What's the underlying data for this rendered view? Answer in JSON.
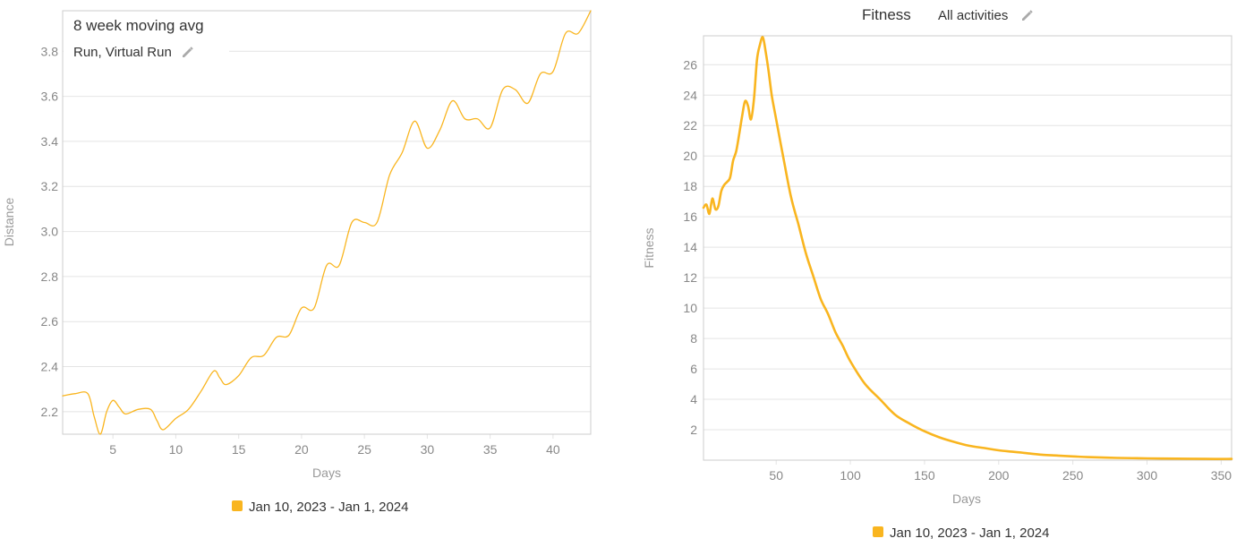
{
  "chart_data": [
    {
      "type": "line",
      "title": "8 week moving avg",
      "subtitle": "Run, Virtual Run",
      "subtitle_icon": "pencil-icon",
      "xlabel": "Days",
      "ylabel": "Distance",
      "xlim": [
        1,
        43
      ],
      "ylim": [
        2.1,
        3.98
      ],
      "xticks": [
        5,
        10,
        15,
        20,
        25,
        30,
        35,
        40
      ],
      "yticks": [
        2.2,
        2.4,
        2.6,
        2.8,
        3.0,
        3.2,
        3.4,
        3.6,
        3.8
      ],
      "ytick_labels": [
        "2.2",
        "2.4",
        "2.6",
        "2.8",
        "3.0",
        "3.2",
        "3.4",
        "3.6",
        "3.8"
      ],
      "grid": true,
      "legend_position": "bottom",
      "series": [
        {
          "name": "Jan 10, 2023 - Jan 1, 2024",
          "color": "#f9b51f",
          "x": [
            1,
            2,
            3,
            3.5,
            4,
            4.5,
            5,
            5.5,
            6,
            7,
            8,
            8.5,
            9,
            10,
            11,
            12,
            13,
            13.5,
            14,
            15,
            16,
            17,
            18,
            19,
            20,
            21,
            22,
            23,
            24,
            25,
            26,
            27,
            28,
            29,
            30,
            31,
            32,
            33,
            34,
            35,
            36,
            37,
            38,
            39,
            40,
            41,
            42,
            43
          ],
          "y": [
            2.27,
            2.28,
            2.28,
            2.18,
            2.1,
            2.2,
            2.25,
            2.22,
            2.19,
            2.21,
            2.21,
            2.16,
            2.12,
            2.17,
            2.21,
            2.29,
            2.38,
            2.35,
            2.32,
            2.36,
            2.44,
            2.45,
            2.53,
            2.54,
            2.66,
            2.66,
            2.85,
            2.85,
            3.04,
            3.04,
            3.04,
            3.25,
            3.35,
            3.49,
            3.37,
            3.45,
            3.58,
            3.5,
            3.5,
            3.46,
            3.63,
            3.63,
            3.57,
            3.7,
            3.71,
            3.88,
            3.88,
            3.98
          ]
        }
      ]
    },
    {
      "type": "line",
      "title": "Fitness",
      "subtitle": "All activities",
      "subtitle_icon": "pencil-icon",
      "xlabel": "Days",
      "ylabel": "Fitness",
      "xlim": [
        1,
        357
      ],
      "ylim": [
        0,
        27.9
      ],
      "xticks": [
        50,
        100,
        150,
        200,
        250,
        300,
        350
      ],
      "yticks": [
        2,
        4,
        6,
        8,
        10,
        12,
        14,
        16,
        18,
        20,
        22,
        24,
        26
      ],
      "grid": true,
      "legend_position": "bottom",
      "series": [
        {
          "name": "Jan 10, 2023 - Jan 1, 2024",
          "color": "#f9b51f",
          "x": [
            1,
            3,
            5,
            7,
            9,
            11,
            13,
            15,
            17,
            19,
            21,
            23,
            25,
            27,
            29,
            31,
            33,
            35,
            37,
            39,
            41,
            43,
            45,
            47,
            50,
            55,
            60,
            65,
            70,
            75,
            80,
            85,
            90,
            95,
            100,
            110,
            120,
            130,
            140,
            150,
            160,
            170,
            180,
            190,
            200,
            210,
            220,
            230,
            240,
            250,
            260,
            280,
            300,
            320,
            340,
            357
          ],
          "y": [
            16.6,
            16.8,
            16.2,
            17.2,
            16.5,
            16.7,
            17.7,
            18.1,
            18.3,
            18.6,
            19.7,
            20.3,
            21.4,
            22.6,
            23.6,
            23.3,
            22.4,
            23.7,
            26.3,
            27.3,
            27.8,
            26.8,
            25.5,
            24.0,
            22.4,
            19.8,
            17.3,
            15.5,
            13.6,
            12.1,
            10.6,
            9.6,
            8.4,
            7.5,
            6.5,
            5.0,
            4.0,
            3.0,
            2.4,
            1.9,
            1.5,
            1.2,
            0.95,
            0.8,
            0.65,
            0.55,
            0.45,
            0.35,
            0.3,
            0.25,
            0.2,
            0.15,
            0.12,
            0.1,
            0.08,
            0.08
          ]
        }
      ]
    }
  ]
}
